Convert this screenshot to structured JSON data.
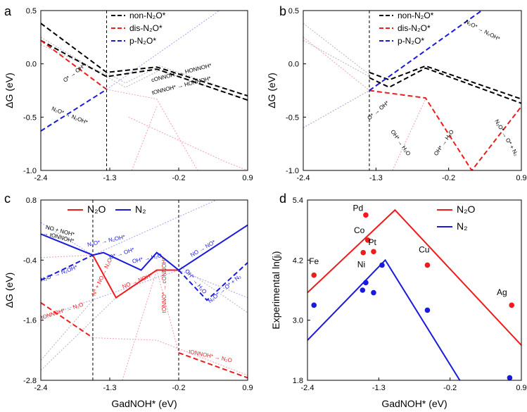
{
  "colors": {
    "black": "#000000",
    "red": "#ee1c1c",
    "blue": "#1a1adc",
    "faint_red": "#f4a6b2",
    "faint_blue": "#aaaaee",
    "faint_gray": "#b9b9c9"
  },
  "chart_data": [
    {
      "panel": "a",
      "type": "line",
      "xlim": [
        -2.4,
        0.9
      ],
      "ylim": [
        -1.0,
        0.5
      ],
      "xticks": [
        "-2.4",
        "-1.3",
        "-0.2",
        "0.9"
      ],
      "yticks": [
        "-1.0",
        "-0.5",
        "0.0",
        "0.5"
      ],
      "ylabel": "ΔG (eV)",
      "xlabel": "",
      "vlines": [
        -1.35
      ],
      "legend": [
        {
          "label": "non-N2O*",
          "text": "non-N₂O*",
          "color": "#000000"
        },
        {
          "label": "dis-N2O*",
          "text": "dis-N₂O*",
          "color": "#ee1c1c"
        },
        {
          "label": "p-N2O*",
          "text": "p-N₂O*",
          "color": "#1a1adc"
        }
      ],
      "series": [
        {
          "name": "non-N2O* 1",
          "color": "#000000",
          "dashed": true,
          "x": [
            -2.4,
            -1.35,
            -0.55,
            0.9
          ],
          "y": [
            0.38,
            -0.08,
            -0.03,
            -0.3
          ]
        },
        {
          "name": "non-N2O* 2",
          "color": "#000000",
          "dashed": true,
          "x": [
            -2.4,
            -1.35,
            -0.55,
            0.9
          ],
          "y": [
            0.22,
            -0.12,
            -0.05,
            -0.34
          ]
        },
        {
          "name": "dis-N2O*",
          "color": "#ee1c1c",
          "dashed": true,
          "x": [
            -2.4,
            -1.35
          ],
          "y": [
            0.22,
            -0.24
          ]
        },
        {
          "name": "p-N2O*",
          "color": "#1a1adc",
          "dashed": true,
          "x": [
            -2.4,
            -1.35
          ],
          "y": [
            -0.63,
            -0.24
          ]
        }
      ],
      "faint_series": [
        {
          "color": "#f4a6b2",
          "x": [
            -1.35,
            -0.55,
            0.1
          ],
          "y": [
            -0.24,
            -0.33,
            -1.0
          ]
        },
        {
          "color": "#f4a6b2",
          "x": [
            -1.0,
            0.55,
            0.9
          ],
          "y": [
            -0.5,
            -0.92,
            -1.0
          ]
        },
        {
          "color": "#f4a6b2",
          "x": [
            -0.95,
            -0.55
          ],
          "y": [
            -1.0,
            -0.4
          ]
        },
        {
          "color": "#aaaaee",
          "x": [
            -1.35,
            0.45
          ],
          "y": [
            -0.24,
            0.5
          ]
        },
        {
          "color": "#b9b9c9",
          "x": [
            -1.35,
            -1.05,
            -0.5,
            0.9
          ],
          "y": [
            -0.08,
            -0.18,
            -0.02,
            -0.3
          ]
        },
        {
          "color": "#b9b9c9",
          "x": [
            -1.35,
            -1.05,
            -0.5,
            0.9
          ],
          "y": [
            -0.12,
            -0.22,
            -0.06,
            -0.34
          ]
        },
        {
          "color": "#b9b9c9",
          "x": [
            -2.4,
            -1.35
          ],
          "y": [
            0.25,
            -0.12
          ]
        },
        {
          "color": "#b9b9c9",
          "x": [
            -2.4,
            -1.35
          ],
          "y": [
            0.18,
            -0.1
          ]
        }
      ],
      "annotations": [
        {
          "label": "O*→OH*",
          "text": "O* → OH*",
          "color": "#000000",
          "x": -1.85,
          "y": -0.1,
          "rot": 38
        },
        {
          "label": "cONNOH*→HONNOH*",
          "text": "cONNOH* → HONNOH*",
          "color": "#000000",
          "x": -0.15,
          "y": -0.1,
          "rot": 14
        },
        {
          "label": "tONNOH*→HONNOH*",
          "text": "tONNOH* → HONNOH*",
          "color": "#000000",
          "x": -0.15,
          "y": -0.22,
          "rot": 14
        },
        {
          "label": "N2O*→N2OH*",
          "text": "N₂O* → N₂OH*",
          "color": "#000000",
          "x": -1.95,
          "y": -0.5,
          "rot": -22
        }
      ]
    },
    {
      "panel": "b",
      "type": "line",
      "xlim": [
        -2.4,
        0.9
      ],
      "ylim": [
        -1.0,
        0.5
      ],
      "xticks": [
        "-2.4",
        "-1.3",
        "-0.2",
        "0.9"
      ],
      "yticks": [
        "-1.0",
        "-0.5",
        "0.0",
        "0.5"
      ],
      "ylabel": "ΔG (eV)",
      "xlabel": "",
      "vlines": [
        -1.4
      ],
      "legend": [
        {
          "label": "non-N2O*",
          "text": "non-N₂O*",
          "color": "#000000"
        },
        {
          "label": "dis-N2O*",
          "text": "dis-N₂O*",
          "color": "#ee1c1c"
        },
        {
          "label": "p-N2O*",
          "text": "p-N₂O*",
          "color": "#1a1adc"
        }
      ],
      "series": [
        {
          "name": "non-N2O* 1",
          "color": "#000000",
          "dashed": true,
          "x": [
            -1.4,
            -1.1,
            -0.55,
            0.9
          ],
          "y": [
            -0.08,
            -0.15,
            -0.02,
            -0.33
          ]
        },
        {
          "name": "non-N2O* 2",
          "color": "#000000",
          "dashed": true,
          "x": [
            -1.4,
            -1.1,
            -0.55,
            0.9
          ],
          "y": [
            -0.13,
            -0.22,
            -0.04,
            -0.37
          ]
        },
        {
          "name": "dis-N2O*",
          "color": "#ee1c1c",
          "dashed": true,
          "x": [
            -1.4,
            -0.55,
            0.15,
            0.9
          ],
          "y": [
            -0.25,
            -0.32,
            -1.0,
            -0.4
          ]
        },
        {
          "name": "p-N2O*",
          "color": "#1a1adc",
          "dashed": true,
          "x": [
            -1.4,
            0.3
          ],
          "y": [
            -0.25,
            0.5
          ]
        }
      ],
      "faint_series": [
        {
          "color": "#b9b9c9",
          "x": [
            -2.4,
            -1.4
          ],
          "y": [
            0.38,
            -0.1
          ]
        },
        {
          "color": "#b9b9c9",
          "x": [
            -2.4,
            -1.4
          ],
          "y": [
            0.22,
            -0.12
          ]
        },
        {
          "color": "#aaaaee",
          "x": [
            -2.4,
            -1.4
          ],
          "y": [
            -0.6,
            -0.25
          ]
        },
        {
          "color": "#f4a6b2",
          "x": [
            -2.4,
            -1.4
          ],
          "y": [
            0.25,
            -0.25
          ]
        },
        {
          "color": "#f4a6b2",
          "x": [
            -1.05,
            -0.55
          ],
          "y": [
            -1.0,
            -0.33
          ]
        }
      ],
      "annotations": [
        {
          "label": "O*→OH*",
          "text": "O* → OH*",
          "color": "#000000",
          "x": -1.25,
          "y": -0.45,
          "rot": 40
        },
        {
          "label": "OH*→H2O left",
          "text": "OH* → H₂O",
          "color": "#000000",
          "x": -0.95,
          "y": -0.75,
          "rot": -55
        },
        {
          "label": "OH*→H2O right",
          "text": "OH* → H₂O",
          "color": "#000000",
          "x": -0.25,
          "y": -0.75,
          "rot": 55
        },
        {
          "label": "N2O*→O*+N2",
          "text": "N₂O* → O* + N₂",
          "color": "#000000",
          "x": 0.65,
          "y": -0.7,
          "rot": -60
        },
        {
          "label": "N2O*→N2OH*",
          "text": "N₂O* → N₂OH*",
          "color": "#000000",
          "x": 0.3,
          "y": 0.3,
          "rot": -28
        }
      ]
    },
    {
      "panel": "c",
      "type": "line",
      "xlim": [
        -2.4,
        0.9
      ],
      "ylim": [
        -2.8,
        0.8
      ],
      "xticks": [
        "-2.4",
        "-1.3",
        "-0.2",
        "0.9"
      ],
      "yticks": [
        "-2.8",
        "-1.6",
        "-0.4",
        "0.8"
      ],
      "ylabel": "ΔG (eV)",
      "xlabel": "GadNOH* (eV)",
      "vlines": [
        -1.57,
        -0.2
      ],
      "legend": [
        {
          "label": "N2O",
          "text": "N₂O",
          "color": "#ee1c1c"
        },
        {
          "label": "N2",
          "text": "N₂",
          "color": "#1a1adc"
        }
      ],
      "series": [
        {
          "name": "N2O solid",
          "color": "#ee1c1c",
          "dashed": false,
          "x": [
            -1.57,
            -1.2,
            -0.55,
            -0.2
          ],
          "y": [
            -0.3,
            -1.15,
            -0.6,
            -0.6
          ]
        },
        {
          "name": "N2 solid",
          "color": "#1a1adc",
          "dashed": false,
          "x": [
            -2.4,
            -1.57,
            -1.4,
            -0.8,
            -0.55,
            -0.2,
            0.9
          ],
          "y": [
            0.12,
            -0.3,
            -0.25,
            -0.6,
            -0.25,
            -0.6,
            0.3
          ]
        },
        {
          "name": "N2 dashed left",
          "color": "#1a1adc",
          "dashed": true,
          "x": [
            -2.4,
            -1.57
          ],
          "y": [
            -0.8,
            -0.3
          ]
        },
        {
          "name": "N2 dashed right",
          "color": "#1a1adc",
          "dashed": true,
          "x": [
            -0.2,
            0.25,
            0.9
          ],
          "y": [
            -0.6,
            -1.2,
            -0.45
          ]
        },
        {
          "name": "N2O dashed left",
          "color": "#ee1c1c",
          "dashed": true,
          "x": [
            -2.4,
            -1.57
          ],
          "y": [
            -1.25,
            -1.95
          ]
        },
        {
          "name": "N2O dashed right",
          "color": "#ee1c1c",
          "dashed": true,
          "x": [
            -0.2,
            0.9
          ],
          "y": [
            -2.25,
            -2.75
          ]
        }
      ],
      "faint_series": [
        {
          "color": "#aaaaee",
          "x": [
            -2.4,
            -1.57
          ],
          "y": [
            0.35,
            -0.3
          ]
        },
        {
          "color": "#aaaaee",
          "x": [
            -1.57,
            0.4
          ],
          "y": [
            -0.3,
            0.8
          ]
        },
        {
          "color": "#aaaaee",
          "x": [
            -2.4,
            -0.2
          ],
          "y": [
            -1.55,
            -0.6
          ]
        },
        {
          "color": "#aaaaee",
          "x": [
            -0.2,
            0.9
          ],
          "y": [
            -0.6,
            -1.15
          ]
        },
        {
          "color": "#f4a6b2",
          "x": [
            -2.4,
            -1.57
          ],
          "y": [
            -0.35,
            -0.3
          ]
        },
        {
          "color": "#f4a6b2",
          "x": [
            -1.57,
            -0.55,
            0.9
          ],
          "y": [
            -1.95,
            -2.0,
            -2.7
          ]
        },
        {
          "color": "#f4a6b2",
          "x": [
            -1.1,
            -0.55,
            -0.2
          ],
          "y": [
            -2.8,
            -0.6,
            -2.25
          ]
        },
        {
          "color": "#b9b9c9",
          "x": [
            -2.4,
            -1.57
          ],
          "y": [
            -2.4,
            -1.2
          ]
        },
        {
          "color": "#b9b9c9",
          "x": [
            -2.4,
            -1.2
          ],
          "y": [
            -2.6,
            -1.15
          ]
        },
        {
          "color": "#b9b9c9",
          "x": [
            -0.2,
            0.9
          ],
          "y": [
            -0.5,
            -1.45
          ]
        }
      ],
      "annotations": [
        {
          "label": "NO+NOH*→tONNOH*",
          "text": "NO + NOH*",
          "text2": "→ tONNOH*",
          "color": "#000000",
          "x": -2.1,
          "y": 0.15,
          "rot": -15
        },
        {
          "label": "N2O*→N2OH*",
          "text": "N₂O* → N₂OH*",
          "color": "#1a1adc",
          "x": -2.1,
          "y": -0.7,
          "rot": 20
        },
        {
          "label": "N2O*→N2OH* top",
          "text": "N₂O* → N₂OH*",
          "color": "#1a1adc",
          "x": -1.35,
          "y": -0.05,
          "rot": 12
        },
        {
          "label": "O*→OH*",
          "text": "O* → OH*",
          "color": "#1a1adc",
          "x": -1.1,
          "y": -0.3,
          "rot": 18
        },
        {
          "label": "OH*→H2O",
          "text": "OH* → H₂O",
          "color": "#1a1adc",
          "x": -0.7,
          "y": -0.4,
          "rot": 12
        },
        {
          "label": "NO→NO*",
          "text": "NO → NO*",
          "color": "#1a1adc",
          "x": 0.2,
          "y": -0.2,
          "rot": 30
        },
        {
          "label": "OH*→H2O right",
          "text": "OH* → H₂O",
          "color": "#1a1adc",
          "x": 0.05,
          "y": -0.85,
          "rot": -50
        },
        {
          "label": "N2O*→O*+N2",
          "text": "N₂O* → O* + N₂",
          "color": "#1a1adc",
          "x": 0.55,
          "y": -1.0,
          "rot": 40
        },
        {
          "label": "N*+NO→N2O",
          "text": "N* + NO → N₂O",
          "color": "#ee1c1c",
          "x": -1.4,
          "y": -0.75,
          "rot": 65
        },
        {
          "label": "NO→NOH*",
          "text": "NO → NOH*",
          "color": "#ee1c1c",
          "x": -0.85,
          "y": -0.85,
          "rot": 22
        },
        {
          "label": "tONNO*→cONNOH*",
          "text": "tONNO* → cONNOH*",
          "color": "#ee1c1c",
          "x": -0.4,
          "y": -0.9,
          "rot": 90
        },
        {
          "label": "tONNOH*→N2O",
          "text": "tONNOH* → N₂O",
          "color": "#ee1c1c",
          "x": -2.05,
          "y": -1.45,
          "rot": 18
        },
        {
          "label": "tONNOH*→N2O right",
          "text": "tONNOH* → N₂O",
          "color": "#ee1c1c",
          "x": 0.3,
          "y": -2.35,
          "rot": -12
        }
      ]
    },
    {
      "panel": "d",
      "type": "scatter",
      "xlim": [
        -2.4,
        0.9
      ],
      "ylim": [
        1.8,
        5.4
      ],
      "xticks": [
        "-2.4",
        "-1.3",
        "-0.2",
        "0.9"
      ],
      "yticks": [
        "1.8",
        "3.0",
        "4.2",
        "5.4"
      ],
      "ylabel": "Experimental ln(jᵢ)",
      "xlabel": "GadNOH* (eV)",
      "legend": [
        {
          "label": "N2O",
          "text": "N₂O",
          "color": "#ee1c1c"
        },
        {
          "label": "N2",
          "text": "N₂",
          "color": "#1a1adc"
        }
      ],
      "series": [
        {
          "name": "N2O",
          "color": "#ee1c1c",
          "dashed": false,
          "x": [
            -2.4,
            -1.05,
            0.9
          ],
          "y": [
            3.55,
            5.2,
            2.5
          ]
        },
        {
          "name": "N2",
          "color": "#1a1adc",
          "dashed": false,
          "x": [
            -2.4,
            -1.2,
            -0.05
          ],
          "y": [
            2.6,
            4.2,
            1.8
          ]
        }
      ],
      "points_N2O": [
        {
          "label": "Fe",
          "x": -2.3,
          "y": 3.9
        },
        {
          "label": "Pd",
          "x": -1.5,
          "y": 5.1
        },
        {
          "label": "Co",
          "x": -1.47,
          "y": 4.6
        },
        {
          "label": "Ni",
          "x": -1.54,
          "y": 4.35
        },
        {
          "label": "Pt",
          "x": -1.38,
          "y": 4.37
        },
        {
          "label": "Cu",
          "x": -0.55,
          "y": 4.1
        },
        {
          "label": "Ag",
          "x": 0.75,
          "y": 3.3
        }
      ],
      "points_N2": [
        {
          "x": -2.3,
          "y": 3.3
        },
        {
          "x": -1.55,
          "y": 3.6
        },
        {
          "x": -1.5,
          "y": 3.75
        },
        {
          "x": -1.38,
          "y": 3.55
        },
        {
          "x": -1.25,
          "y": 4.1
        },
        {
          "x": -0.55,
          "y": 3.2
        },
        {
          "x": 0.72,
          "y": 1.85
        }
      ],
      "point_labels": [
        {
          "text": "Fe",
          "x": -2.3,
          "y": 4.12
        },
        {
          "text": "Pd",
          "x": -1.62,
          "y": 5.18
        },
        {
          "text": "Co",
          "x": -1.6,
          "y": 4.74
        },
        {
          "text": "Ni",
          "x": -1.57,
          "y": 4.06
        },
        {
          "text": "Pt",
          "x": -1.4,
          "y": 4.5
        },
        {
          "text": "Cu",
          "x": -0.6,
          "y": 4.35
        },
        {
          "text": "Ag",
          "x": 0.6,
          "y": 3.5
        }
      ]
    }
  ],
  "panel_letters": [
    "a",
    "b",
    "c",
    "d"
  ]
}
